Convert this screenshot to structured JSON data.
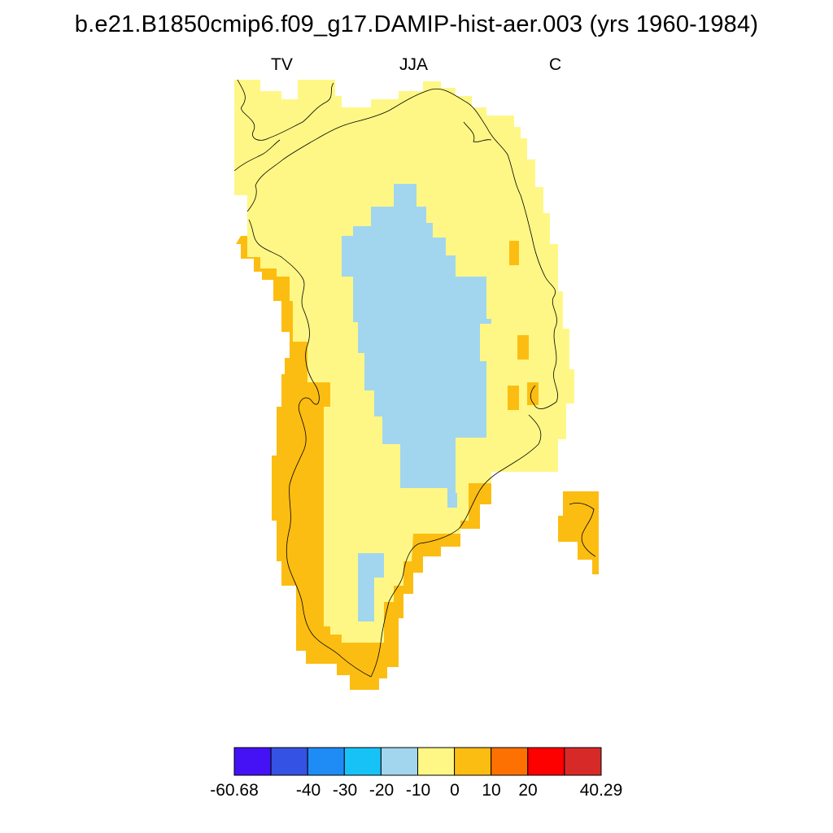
{
  "title": "b.e21.B1850cmip6.f09_g17.DAMIP-hist-aer.003 (yrs 1960-1984)",
  "subtitles": {
    "left": "TV",
    "center": "JJA",
    "right": "C"
  },
  "legend": {
    "colors": [
      "#4412f5",
      "#3452e3",
      "#1f8bf5",
      "#17c2f7",
      "#a2d6ee",
      "#fff785",
      "#fcbd12",
      "#fd7103",
      "#fd0000",
      "#d72a28"
    ],
    "labels": [
      "-60.68",
      "-40",
      "-30",
      "-20",
      "-10",
      "0",
      "10",
      "20",
      "40.29"
    ]
  },
  "map_colors": {
    "neg_10_to_0": "#fff785",
    "pos_0_to_10": "#fcbd12",
    "neg_20_to_10": "#a2d6ee",
    "coastline": "#000000"
  }
}
